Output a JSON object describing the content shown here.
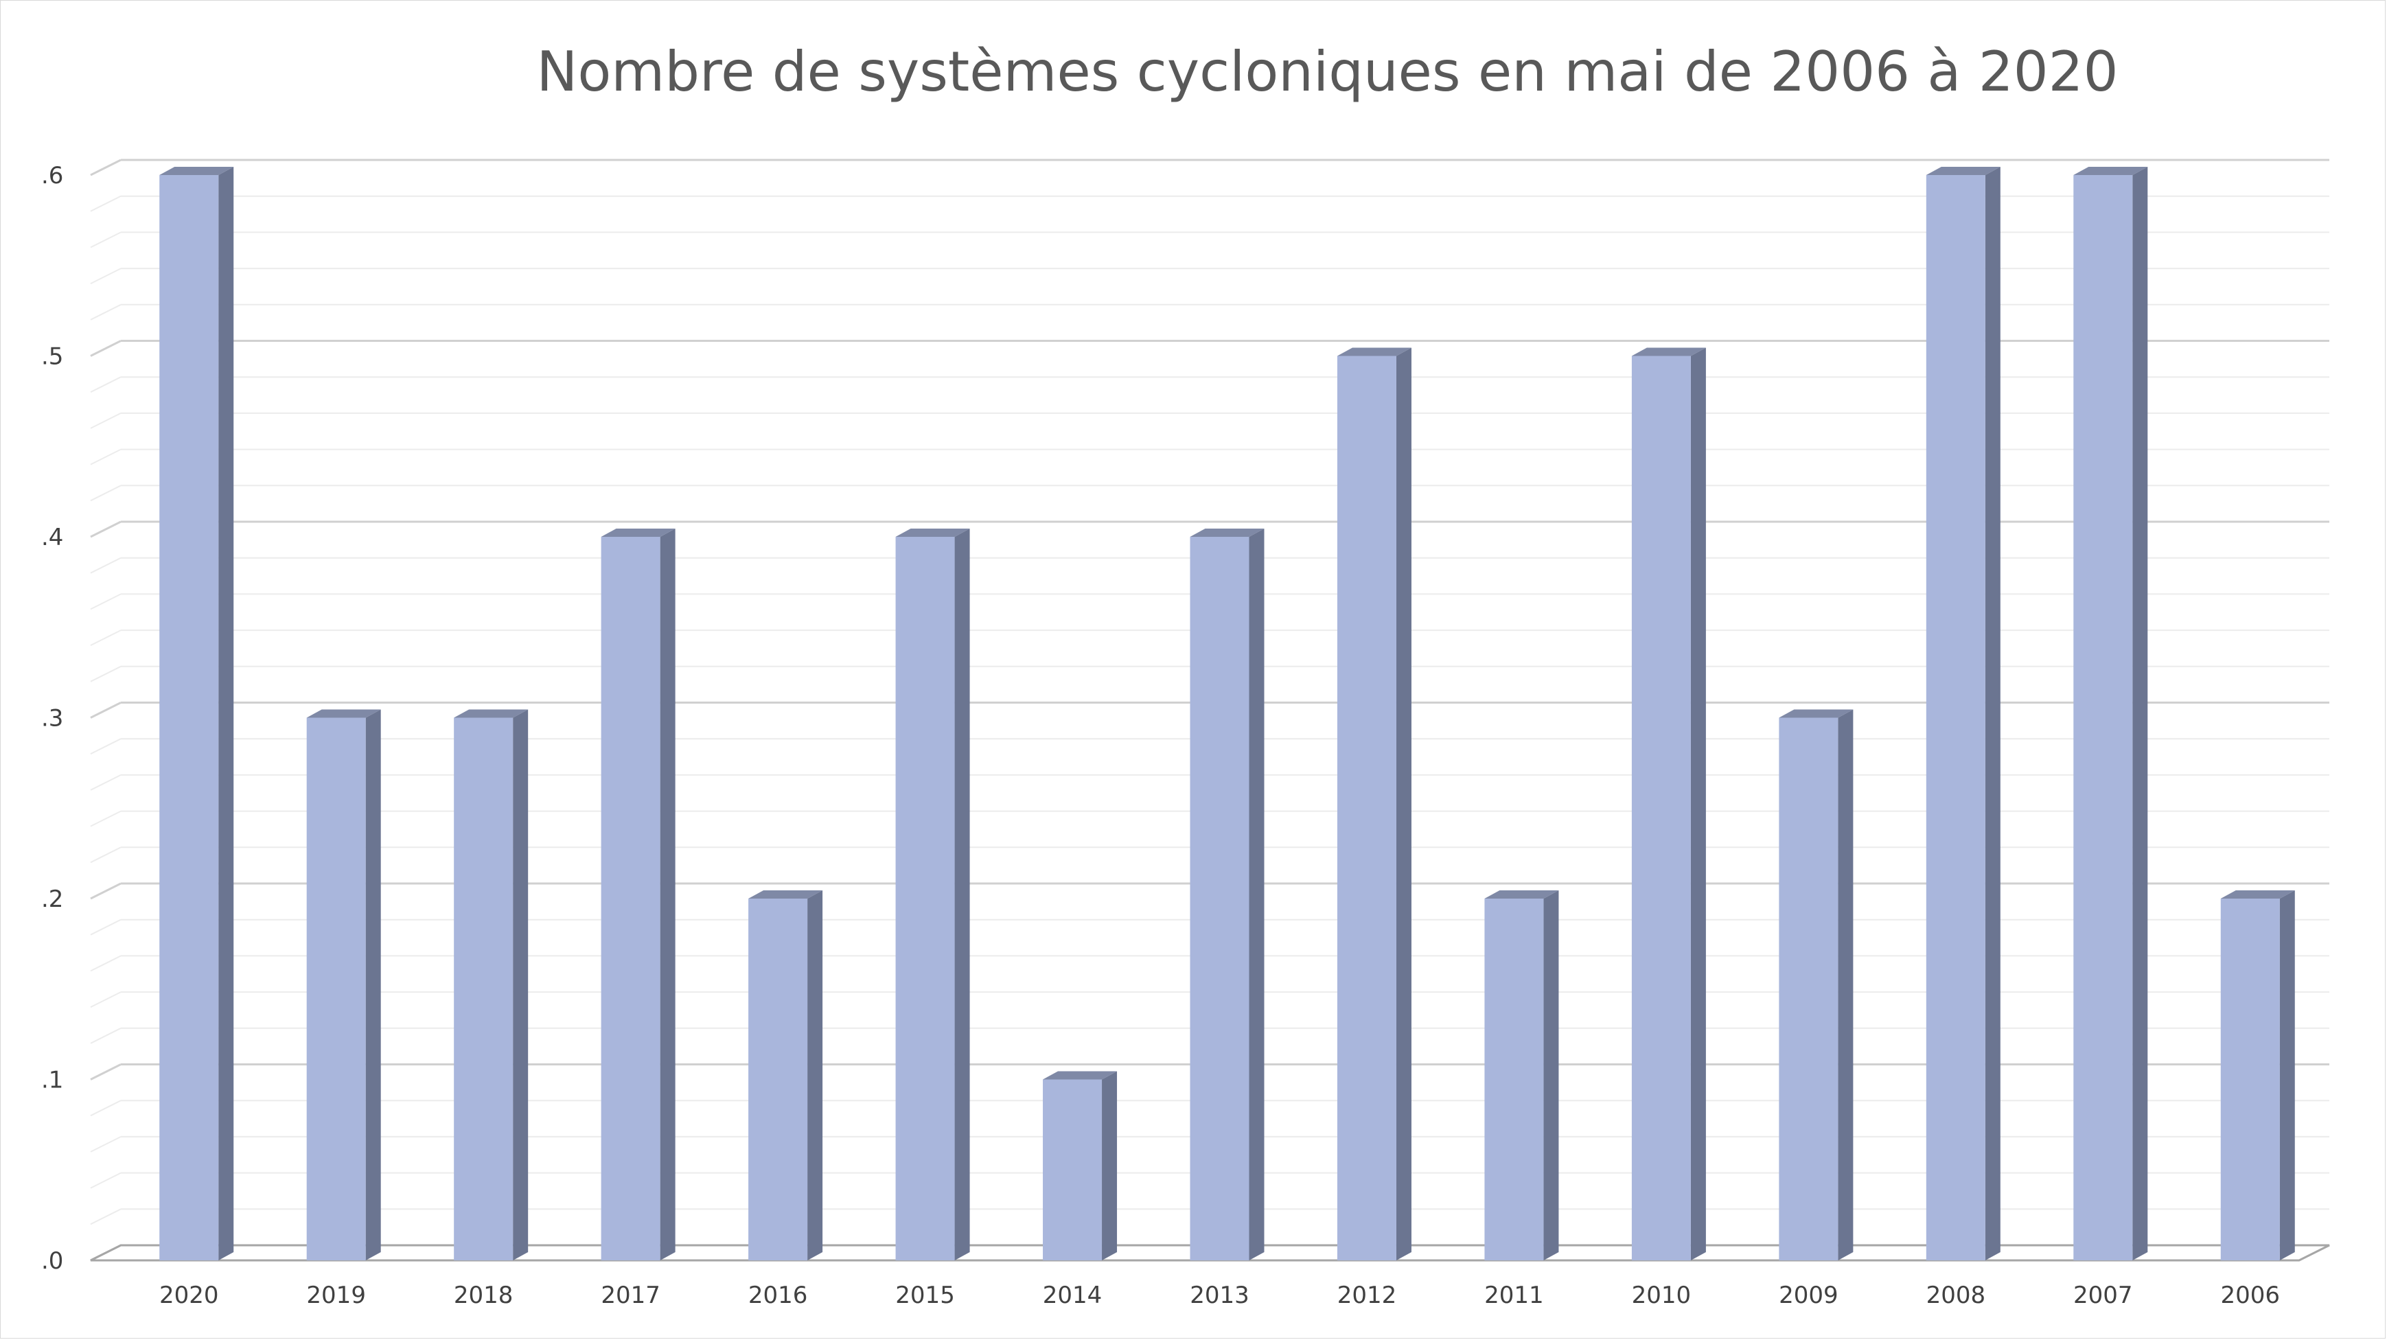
{
  "chart_data": {
    "type": "bar",
    "title": "Nombre de systèmes cycloniques en mai de 2006 à 2020",
    "xlabel": "",
    "ylabel": "",
    "categories": [
      "2020",
      "2019",
      "2018",
      "2017",
      "2016",
      "2015",
      "2014",
      "2013",
      "2012",
      "2011",
      "2010",
      "2009",
      "2008",
      "2007",
      "2006"
    ],
    "values": [
      6,
      3,
      3,
      4,
      2,
      4,
      1,
      4,
      5,
      2,
      5,
      3,
      6,
      6,
      2
    ],
    "y_ticks": [
      ".0",
      ".1",
      ".2",
      ".3",
      ".4",
      ".5",
      ".6"
    ],
    "ylim": [
      0,
      6
    ],
    "grid": true,
    "legend": "none",
    "style": "3d-column",
    "colors": {
      "bar_front": "#a9b6dc",
      "bar_side": "#6b7591",
      "bar_top": "#7f89a6",
      "grid_major": "#d0d0d0",
      "grid_minor": "#ececec"
    }
  }
}
